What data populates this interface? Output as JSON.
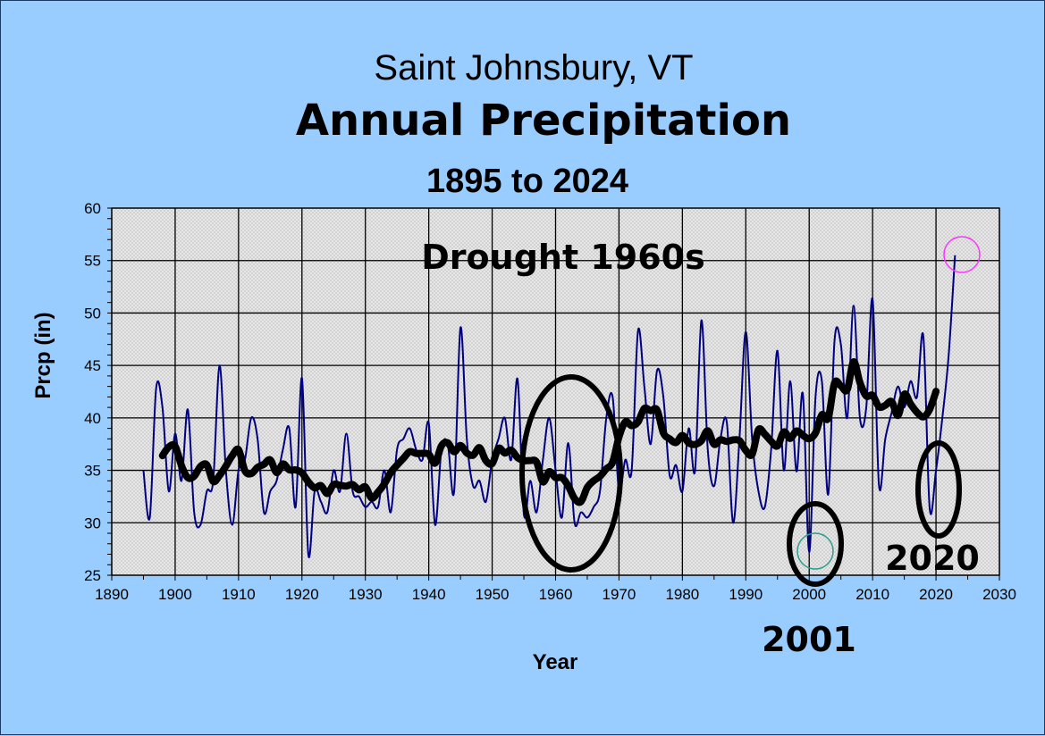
{
  "chart_data": {
    "type": "line",
    "title": [
      "Saint Johnsbury, VT",
      "Annual Precipitation",
      "1895 to 2024"
    ],
    "xlabel": "Year",
    "ylabel": "Prcp (in)",
    "xlim": [
      1890,
      2030
    ],
    "ylim": [
      25,
      60
    ],
    "xticks": [
      1890,
      1900,
      1910,
      1920,
      1930,
      1940,
      1950,
      1960,
      1970,
      1980,
      1990,
      2000,
      2010,
      2020,
      2030
    ],
    "yticks": [
      25,
      30,
      35,
      40,
      45,
      50,
      55,
      60
    ],
    "grid": true,
    "legend": "none",
    "colors": {
      "annual": "#000080",
      "trend": "#000000",
      "background": "#99ccff",
      "circle_2001": "#2a9d8f",
      "circle_2024": "#ff33ff"
    },
    "trend_line": "moving average",
    "annotations": [
      "Drought 1960s",
      "2001",
      "2020"
    ],
    "series": [
      {
        "x_start": 1895,
        "values": [
          35,
          30.5,
          42.8,
          41,
          33,
          38.5,
          34,
          40.8,
          31,
          29.8,
          33,
          34,
          45,
          35,
          29.8,
          35,
          36,
          40,
          38,
          31,
          33,
          34,
          37,
          39,
          31.5,
          43.8,
          27,
          33,
          32,
          31,
          35,
          33,
          38.5,
          33,
          32.5,
          31.5,
          32,
          31.5,
          35,
          31,
          37,
          38,
          39,
          37,
          36,
          39.5,
          29.8,
          37,
          37.5,
          33,
          48.6,
          38,
          33.5,
          34,
          32,
          36,
          38,
          40,
          36,
          43.7,
          30.8,
          34,
          31,
          36,
          40,
          35,
          30.5,
          37.6,
          30,
          31,
          30.5,
          31.5,
          33,
          40,
          42,
          33,
          36,
          35,
          48.3,
          43,
          37.5,
          44.5,
          42,
          34.5,
          35.5,
          33,
          39,
          35,
          49.3,
          37,
          33.5,
          38,
          39.6,
          30,
          38,
          48.2,
          38,
          33,
          31.5,
          37,
          46.4,
          35,
          43.5,
          34.9,
          42.3,
          27.2,
          42,
          43.5,
          32.7,
          47.4,
          47,
          40,
          50.7,
          40,
          41,
          51.3,
          33.6,
          38,
          40.5,
          43,
          41,
          43.5,
          42,
          47.8,
          31.4,
          35,
          40,
          46,
          55.5
        ]
      }
    ]
  }
}
